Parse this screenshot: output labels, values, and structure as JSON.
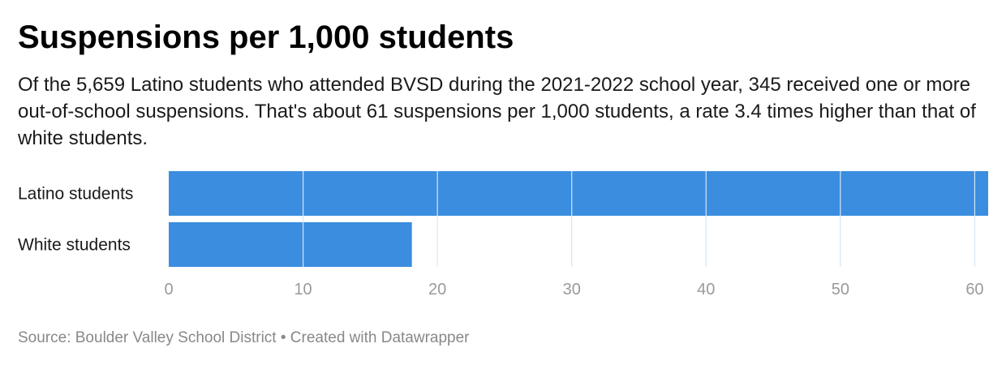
{
  "header": {
    "title": "Suspensions per 1,000 students",
    "description": "Of the 5,659 Latino students who attended BVSD during the 2021-2022 school year, 345 received one or more out-of-school suspensions. That's about 61 suspensions per 1,000 students, a rate 3.4 times higher than that of white students."
  },
  "footer": {
    "source": "Source: Boulder Valley School District",
    "separator": " • ",
    "credit": "Created with Datawrapper"
  },
  "colors": {
    "bar": "#3a8ddf",
    "gridline": "#d6e6f7",
    "tick_label": "#9a9a9a",
    "category_label": "#1a1a1a"
  },
  "chart_data": {
    "type": "bar",
    "orientation": "horizontal",
    "categories": [
      "Latino students",
      "White students"
    ],
    "values": [
      61,
      18.1
    ],
    "xlim": [
      0,
      61
    ],
    "xticks": [
      0,
      10,
      20,
      30,
      40,
      50,
      60
    ],
    "grid": true,
    "title": "",
    "xlabel": "",
    "ylabel": ""
  }
}
